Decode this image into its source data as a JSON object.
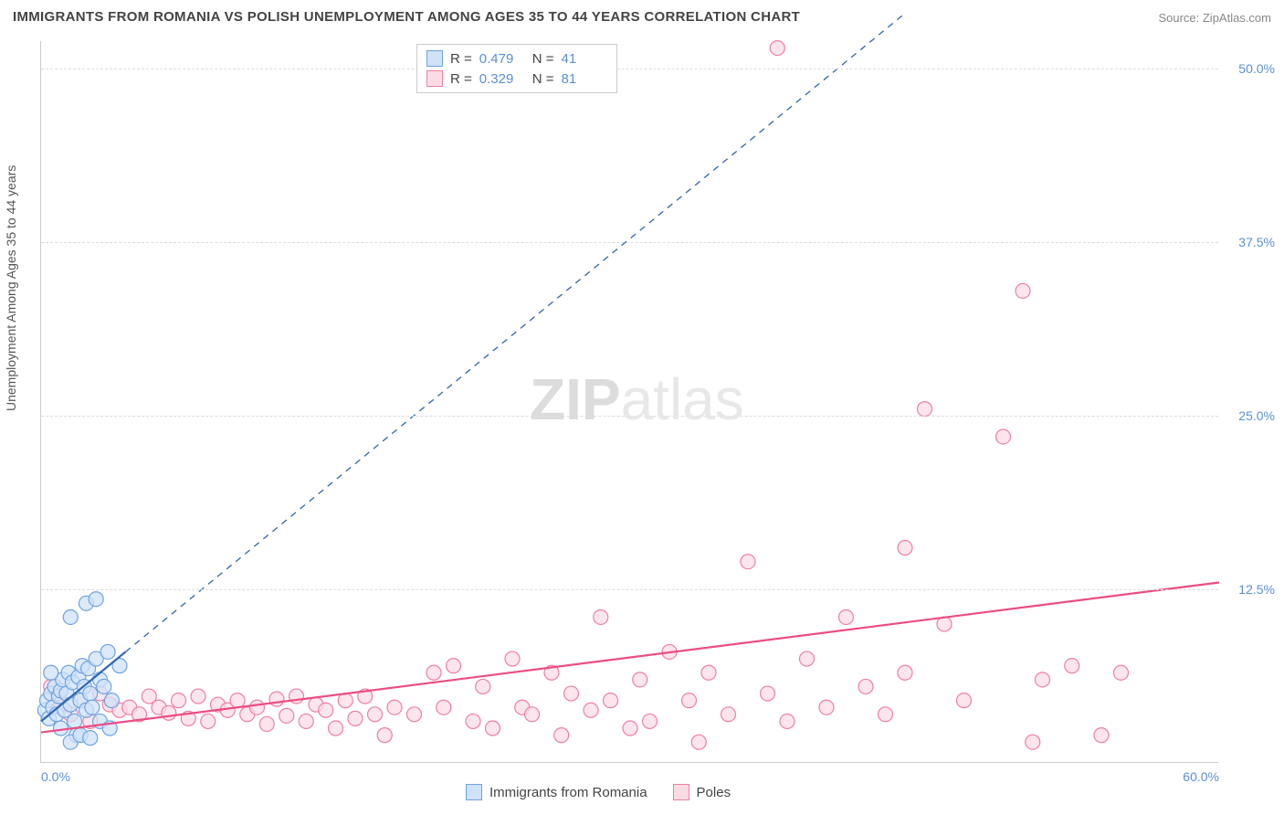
{
  "title": "IMMIGRANTS FROM ROMANIA VS POLISH UNEMPLOYMENT AMONG AGES 35 TO 44 YEARS CORRELATION CHART",
  "source_label": "Source: ",
  "source_name": "ZipAtlas.com",
  "ylabel": "Unemployment Among Ages 35 to 44 years",
  "watermark_a": "ZIP",
  "watermark_b": "atlas",
  "chart": {
    "type": "scatter",
    "xlim": [
      0,
      60
    ],
    "ylim": [
      0,
      52
    ],
    "x_ticks": [
      {
        "v": 0,
        "label": "0.0%"
      },
      {
        "v": 60,
        "label": "60.0%"
      }
    ],
    "y_ticks": [
      {
        "v": 12.5,
        "label": "12.5%"
      },
      {
        "v": 25.0,
        "label": "25.0%"
      },
      {
        "v": 37.5,
        "label": "37.5%"
      },
      {
        "v": 50.0,
        "label": "50.0%"
      }
    ],
    "plot_bg": "#ffffff",
    "grid_color": "#dddddd",
    "axis_color": "#cccccc",
    "marker_radius": 8,
    "marker_stroke_width": 1.2,
    "series": [
      {
        "name": "Immigrants from Romania",
        "fill": "#cfe2f8",
        "stroke": "#6fa3e0",
        "line_color": "#2f66b3",
        "r": 0.479,
        "n": 41,
        "trend": {
          "x1": 0,
          "y1": 3.0,
          "x2": 4.3,
          "y2": 8.0,
          "dash": false,
          "width": 2.2,
          "ext_x2": 44,
          "ext_y2": 54,
          "ext_dash": true
        },
        "points": [
          [
            0.2,
            3.8
          ],
          [
            0.3,
            4.5
          ],
          [
            0.4,
            3.2
          ],
          [
            0.5,
            5.0
          ],
          [
            0.6,
            4.0
          ],
          [
            0.7,
            5.5
          ],
          [
            0.8,
            3.5
          ],
          [
            0.9,
            4.8
          ],
          [
            1.0,
            5.2
          ],
          [
            1.1,
            6.0
          ],
          [
            1.2,
            3.8
          ],
          [
            1.3,
            5.0
          ],
          [
            1.4,
            6.5
          ],
          [
            1.5,
            4.2
          ],
          [
            1.6,
            5.8
          ],
          [
            1.7,
            3.0
          ],
          [
            1.8,
            2.0
          ],
          [
            1.9,
            6.2
          ],
          [
            2.0,
            4.5
          ],
          [
            2.1,
            7.0
          ],
          [
            2.2,
            5.5
          ],
          [
            2.3,
            3.8
          ],
          [
            2.4,
            6.8
          ],
          [
            2.5,
            5.0
          ],
          [
            2.6,
            4.0
          ],
          [
            2.8,
            7.5
          ],
          [
            3.0,
            6.0
          ],
          [
            3.2,
            5.5
          ],
          [
            3.4,
            8.0
          ],
          [
            3.6,
            4.5
          ],
          [
            1.0,
            2.5
          ],
          [
            1.5,
            1.5
          ],
          [
            2.0,
            2.0
          ],
          [
            2.5,
            1.8
          ],
          [
            0.5,
            6.5
          ],
          [
            1.5,
            10.5
          ],
          [
            2.3,
            11.5
          ],
          [
            2.8,
            11.8
          ],
          [
            3.0,
            3.0
          ],
          [
            3.5,
            2.5
          ],
          [
            4.0,
            7.0
          ]
        ]
      },
      {
        "name": "Poles",
        "fill": "#fbdce5",
        "stroke": "#ef7fa5",
        "line_color": "#ec4d82",
        "r": 0.329,
        "n": 81,
        "trend": {
          "x1": 0,
          "y1": 2.2,
          "x2": 60,
          "y2": 13.0,
          "dash": false,
          "width": 2.2
        },
        "points": [
          [
            0.5,
            5.5
          ],
          [
            1.0,
            4.0
          ],
          [
            1.5,
            3.5
          ],
          [
            2.0,
            4.5
          ],
          [
            2.5,
            3.0
          ],
          [
            3.0,
            5.0
          ],
          [
            3.5,
            4.2
          ],
          [
            4.0,
            3.8
          ],
          [
            4.5,
            4.0
          ],
          [
            5.0,
            3.5
          ],
          [
            5.5,
            4.8
          ],
          [
            6.0,
            4.0
          ],
          [
            6.5,
            3.6
          ],
          [
            7.0,
            4.5
          ],
          [
            7.5,
            3.2
          ],
          [
            8.0,
            4.8
          ],
          [
            8.5,
            3.0
          ],
          [
            9.0,
            4.2
          ],
          [
            9.5,
            3.8
          ],
          [
            10.0,
            4.5
          ],
          [
            10.5,
            3.5
          ],
          [
            11.0,
            4.0
          ],
          [
            11.5,
            2.8
          ],
          [
            12.0,
            4.6
          ],
          [
            12.5,
            3.4
          ],
          [
            13.0,
            4.8
          ],
          [
            13.5,
            3.0
          ],
          [
            14.0,
            4.2
          ],
          [
            14.5,
            3.8
          ],
          [
            15.0,
            2.5
          ],
          [
            15.5,
            4.5
          ],
          [
            16.0,
            3.2
          ],
          [
            16.5,
            4.8
          ],
          [
            17.0,
            3.5
          ],
          [
            17.5,
            2.0
          ],
          [
            18.0,
            4.0
          ],
          [
            19.0,
            3.5
          ],
          [
            20.0,
            6.5
          ],
          [
            20.5,
            4.0
          ],
          [
            21.0,
            7.0
          ],
          [
            22.0,
            3.0
          ],
          [
            22.5,
            5.5
          ],
          [
            23.0,
            2.5
          ],
          [
            24.0,
            7.5
          ],
          [
            24.5,
            4.0
          ],
          [
            25.0,
            3.5
          ],
          [
            26.0,
            6.5
          ],
          [
            26.5,
            2.0
          ],
          [
            27.0,
            5.0
          ],
          [
            28.0,
            3.8
          ],
          [
            28.5,
            10.5
          ],
          [
            29.0,
            4.5
          ],
          [
            30.0,
            2.5
          ],
          [
            30.5,
            6.0
          ],
          [
            31.0,
            3.0
          ],
          [
            32.0,
            8.0
          ],
          [
            33.0,
            4.5
          ],
          [
            33.5,
            1.5
          ],
          [
            34.0,
            6.5
          ],
          [
            35.0,
            3.5
          ],
          [
            36.0,
            14.5
          ],
          [
            37.0,
            5.0
          ],
          [
            38.0,
            3.0
          ],
          [
            39.0,
            7.5
          ],
          [
            40.0,
            4.0
          ],
          [
            41.0,
            10.5
          ],
          [
            42.0,
            5.5
          ],
          [
            43.0,
            3.5
          ],
          [
            44.0,
            6.5
          ],
          [
            44.0,
            15.5
          ],
          [
            45.0,
            25.5
          ],
          [
            46.0,
            10.0
          ],
          [
            47.0,
            4.5
          ],
          [
            49.0,
            23.5
          ],
          [
            50.0,
            34.0
          ],
          [
            50.5,
            1.5
          ],
          [
            51.0,
            6.0
          ],
          [
            52.5,
            7.0
          ],
          [
            54.0,
            2.0
          ],
          [
            55.0,
            6.5
          ],
          [
            37.5,
            51.5
          ]
        ]
      }
    ]
  },
  "legend_top": {
    "r_label": "R =",
    "n_label": "N ="
  },
  "legend_bottom_items": [
    {
      "label": "Immigrants from Romania",
      "fill": "#cfe2f8",
      "stroke": "#6fa3e0"
    },
    {
      "label": "Poles",
      "fill": "#fbdce5",
      "stroke": "#ef7fa5"
    }
  ]
}
